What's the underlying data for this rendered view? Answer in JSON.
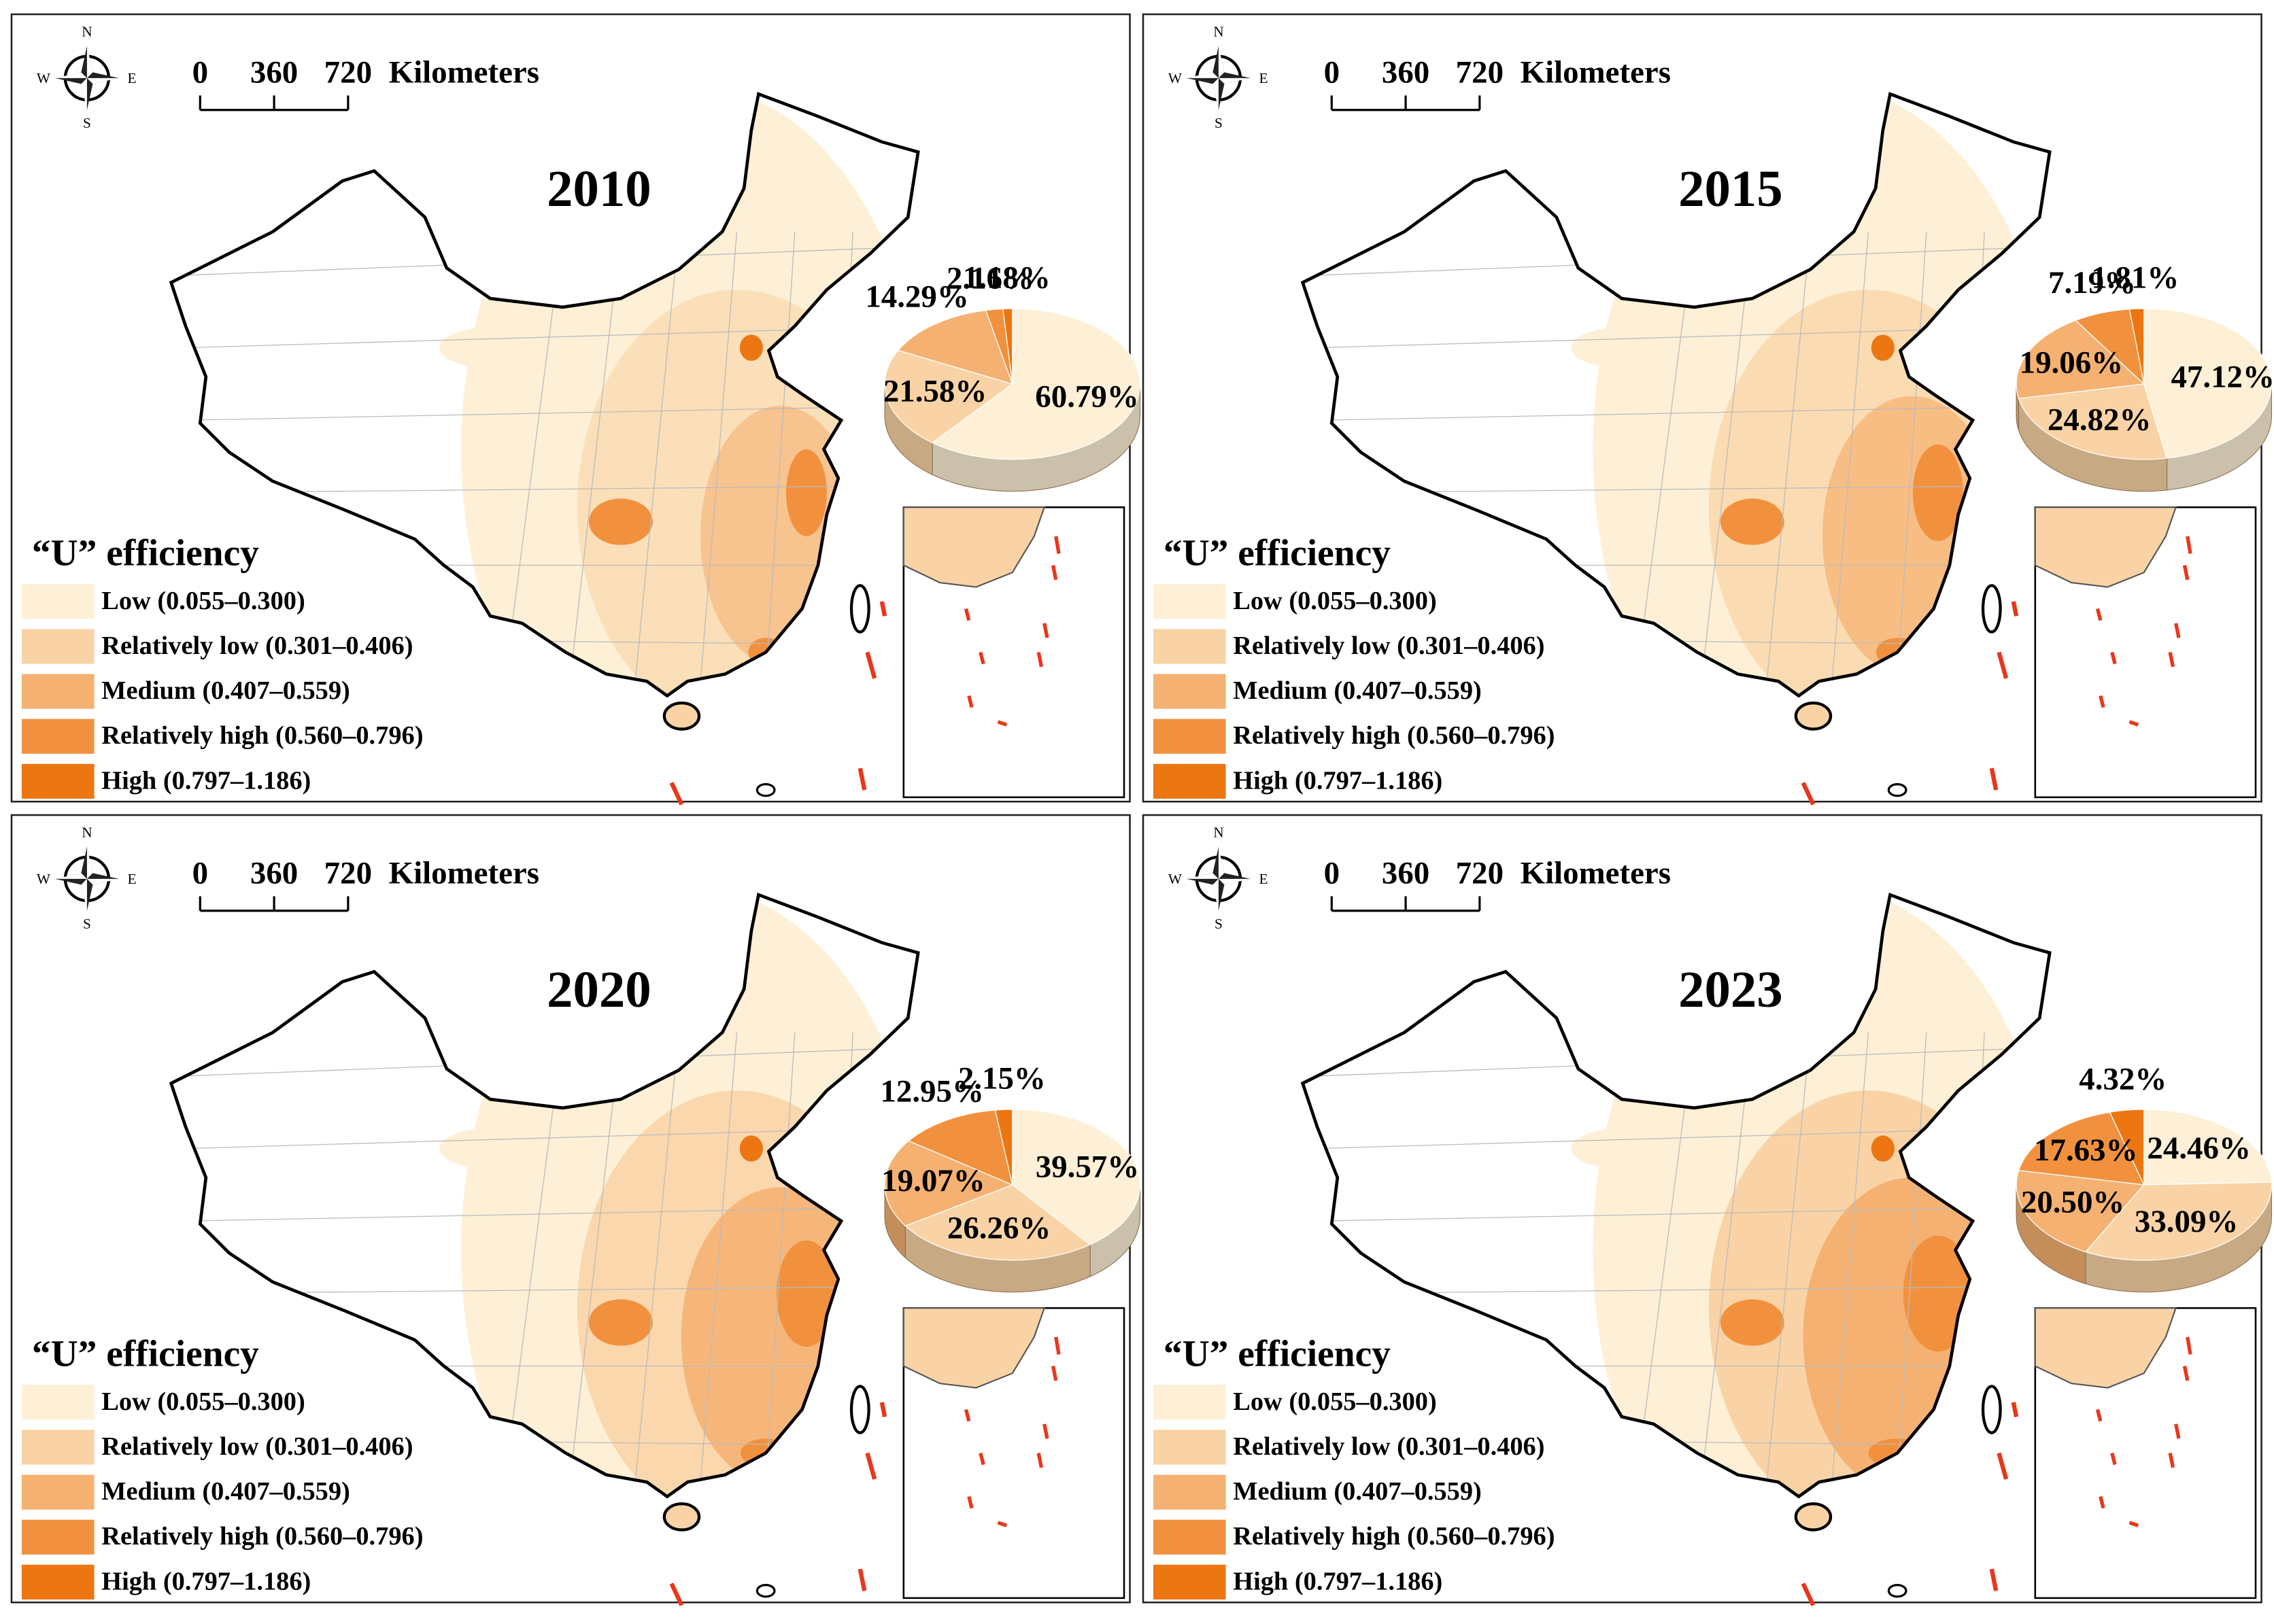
{
  "panels": [
    {
      "year": "2010",
      "scale": {
        "labels": [
          0,
          360,
          720
        ],
        "unit": "Kilometers"
      },
      "compass": {
        "n": "N",
        "s": "S",
        "w": "W",
        "e": "E"
      },
      "legend": {
        "title": "“U” efficiency",
        "items": [
          {
            "label": "Low (0.055–0.300)",
            "color": "#fdf0d6"
          },
          {
            "label": "Relatively low (0.301–0.406)",
            "color": "#f9d3a5"
          },
          {
            "label": "Medium (0.407–0.559)",
            "color": "#f5b172"
          },
          {
            "label": "Relatively high (0.560–0.796)",
            "color": "#f1913e"
          },
          {
            "label": "High (0.797–1.186)",
            "color": "#ec7612"
          }
        ]
      },
      "pie": {
        "type": "pie",
        "values": [
          60.79,
          21.58,
          14.29,
          2.16,
          1.18
        ],
        "value_labels": [
          "60.79%",
          "21.58%",
          "14.29%",
          "2.16%",
          "1.18%"
        ]
      }
    },
    {
      "year": "2015",
      "scale": {
        "labels": [
          0,
          360,
          720
        ],
        "unit": "Kilometers"
      },
      "compass": {
        "n": "N",
        "s": "S",
        "w": "W",
        "e": "E"
      },
      "legend": {
        "title": "“U” efficiency",
        "items": [
          {
            "label": "Low (0.055–0.300)",
            "color": "#fdf0d6"
          },
          {
            "label": "Relatively low (0.301–0.406)",
            "color": "#f9d3a5"
          },
          {
            "label": "Medium (0.407–0.559)",
            "color": "#f5b172"
          },
          {
            "label": "Relatively high (0.560–0.796)",
            "color": "#f1913e"
          },
          {
            "label": "High (0.797–1.186)",
            "color": "#ec7612"
          }
        ]
      },
      "pie": {
        "type": "pie",
        "values": [
          47.12,
          24.82,
          19.06,
          7.19,
          1.81
        ],
        "value_labels": [
          "47.12%",
          "24.82%",
          "19.06%",
          "7.19%",
          "1.81%"
        ]
      }
    },
    {
      "year": "2020",
      "scale": {
        "labels": [
          0,
          360,
          720
        ],
        "unit": "Kilometers"
      },
      "compass": {
        "n": "N",
        "s": "S",
        "w": "W",
        "e": "E"
      },
      "legend": {
        "title": "“U” efficiency",
        "items": [
          {
            "label": "Low (0.055–0.300)",
            "color": "#fdf0d6"
          },
          {
            "label": "Relatively low (0.301–0.406)",
            "color": "#f9d3a5"
          },
          {
            "label": "Medium (0.407–0.559)",
            "color": "#f5b172"
          },
          {
            "label": "Relatively high (0.560–0.796)",
            "color": "#f1913e"
          },
          {
            "label": "High (0.797–1.186)",
            "color": "#ec7612"
          }
        ]
      },
      "pie": {
        "type": "pie",
        "values": [
          39.57,
          26.26,
          19.07,
          12.95,
          2.15
        ],
        "value_labels": [
          "39.57%",
          "26.26%",
          "19.07%",
          "12.95%",
          "2.15%"
        ]
      }
    },
    {
      "year": "2023",
      "scale": {
        "labels": [
          0,
          360,
          720
        ],
        "unit": "Kilometers"
      },
      "compass": {
        "n": "N",
        "s": "S",
        "w": "W",
        "e": "E"
      },
      "legend": {
        "title": "“U” efficiency",
        "items": [
          {
            "label": "Low (0.055–0.300)",
            "color": "#fdf0d6"
          },
          {
            "label": "Relatively low (0.301–0.406)",
            "color": "#f9d3a5"
          },
          {
            "label": "Medium (0.407–0.559)",
            "color": "#f5b172"
          },
          {
            "label": "Relatively high (0.560–0.796)",
            "color": "#f1913e"
          },
          {
            "label": "High (0.797–1.186)",
            "color": "#ec7612"
          }
        ]
      },
      "pie": {
        "type": "pie",
        "values": [
          24.46,
          33.09,
          20.5,
          17.63,
          4.32
        ],
        "value_labels": [
          "24.46%",
          "33.09%",
          "20.50%",
          "17.63%",
          "4.32%"
        ]
      }
    }
  ]
}
